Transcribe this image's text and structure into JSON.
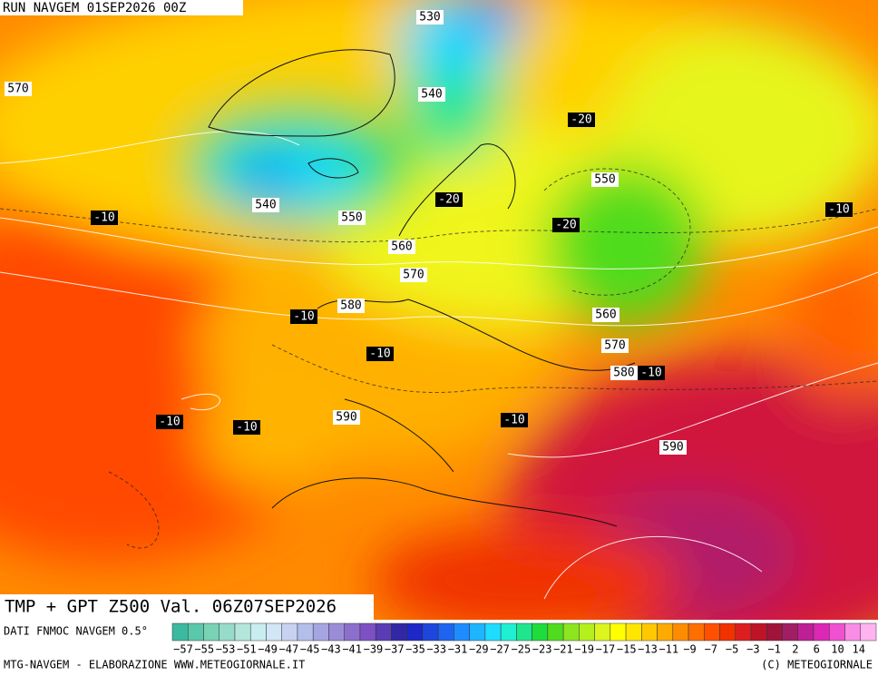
{
  "header": {
    "title": "RUN NAVGEM 01SEP2026 00Z"
  },
  "map": {
    "height_labels": [
      "530",
      "540",
      "540",
      "550",
      "550",
      "560",
      "560",
      "570",
      "570",
      "570",
      "580",
      "580",
      "590",
      "590"
    ],
    "temp_labels": [
      "-10",
      "-10",
      "-10",
      "-10",
      "-10",
      "-10",
      "-10",
      "-10",
      "-20",
      "-20",
      "-20"
    ]
  },
  "product": {
    "title": "TMP + GPT Z500 Val. 06Z07SEP2026"
  },
  "legend": {
    "source": "DATI FNMOC NAVGEM 0.5°",
    "colors": [
      "#3cb9a0",
      "#5ac8aa",
      "#78d2b4",
      "#96dcc8",
      "#b4e6dc",
      "#c8eef0",
      "#d2e6f5",
      "#c8d2f0",
      "#b4beeb",
      "#a5a5e1",
      "#9b8cd7",
      "#8c6ecd",
      "#7d50c3",
      "#5a3cb4",
      "#3228a5",
      "#1e28c8",
      "#1e46dc",
      "#1e64f0",
      "#1e8cff",
      "#1eb4ff",
      "#1edcff",
      "#1ef0d2",
      "#1ee68c",
      "#1edc3c",
      "#50dc1e",
      "#8ce61e",
      "#b4f01e",
      "#dcf51e",
      "#ffff00",
      "#ffe600",
      "#ffc800",
      "#ffaa00",
      "#ff8c00",
      "#ff6e00",
      "#ff5000",
      "#f03200",
      "#dc1e1e",
      "#be1428",
      "#a0143c",
      "#a01e64",
      "#be1e96",
      "#dc28b4",
      "#f050d2",
      "#fa8ce6",
      "#ffb4f0"
    ],
    "labels": [
      "−57",
      "−55",
      "−53",
      "−51",
      "−49",
      "−47",
      "−45",
      "−43",
      "−41",
      "−39",
      "−37",
      "−35",
      "−33",
      "−31",
      "−29",
      "−27",
      "−25",
      "−23",
      "−21",
      "−19",
      "−17",
      "−15",
      "−13",
      "−11",
      "−9",
      "−7",
      "−5",
      "−3",
      "−1",
      "2",
      "6",
      "10",
      "14"
    ]
  },
  "footer": {
    "left": "MTG-NAVGEM - ELABORAZIONE WWW.METEOGIORNALE.IT",
    "right": "(C) METEOGIORNALE"
  }
}
